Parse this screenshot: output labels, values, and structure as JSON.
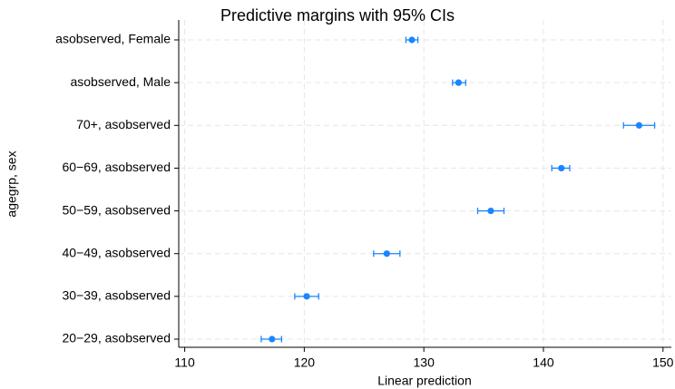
{
  "chart_data": {
    "type": "dot-ci",
    "orientation": "horizontal",
    "title": "Predictive margins with 95% CIs",
    "x_label": "Linear prediction",
    "y_label": "agegrp, sex",
    "categories": [
      "asobserved, Female",
      "asobserved, Male",
      "70+, asobserved",
      "60−69, asobserved",
      "50−59, asobserved",
      "40−49, asobserved",
      "30−39, asobserved",
      "20−29, asobserved"
    ],
    "values": [
      129.0,
      132.9,
      148.0,
      141.5,
      135.6,
      126.9,
      120.2,
      117.3
    ],
    "ci_low": [
      128.5,
      132.4,
      146.7,
      140.7,
      134.5,
      125.8,
      119.2,
      116.4
    ],
    "ci_high": [
      129.5,
      133.5,
      149.3,
      142.2,
      136.7,
      128.0,
      121.2,
      118.1
    ],
    "color": "#1a85ff",
    "xlim": [
      109.5,
      150.7
    ],
    "xticks": [
      110,
      120,
      130,
      140,
      150
    ],
    "grid": true
  }
}
